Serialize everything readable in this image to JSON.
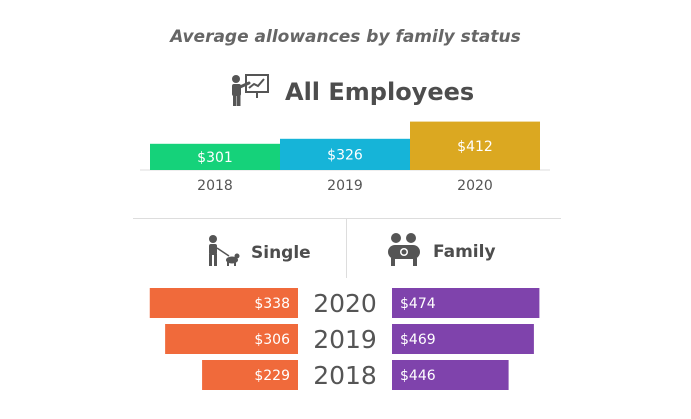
{
  "title": "Average allowances by family status",
  "icons": {
    "all": "presenter-chart-icon",
    "single": "person-walking-dog-icon",
    "family": "family-icon"
  },
  "colors": {
    "all": [
      "#15d27a",
      "#16b4d8",
      "#dba821"
    ],
    "single": "#f06a3b",
    "family": "#7f43ac",
    "text": "#4d4d4d",
    "axis": "#dddddd"
  },
  "chart_data": [
    {
      "type": "bar",
      "title": "All Employees",
      "categories": [
        "2018",
        "2019",
        "2020"
      ],
      "values": [
        301,
        326,
        412
      ],
      "value_labels": [
        "$301",
        "$326",
        "$412"
      ],
      "xlabel": "",
      "ylabel": "",
      "grid": false
    },
    {
      "type": "bar",
      "orientation": "horizontal",
      "categories": [
        "2020",
        "2019",
        "2018"
      ],
      "series": [
        {
          "name": "Single",
          "values": [
            338,
            306,
            229
          ],
          "labels": [
            "$338",
            "$306",
            "$229"
          ]
        },
        {
          "name": "Family",
          "values": [
            474,
            469,
            446
          ],
          "labels": [
            "$474",
            "$469",
            "$446"
          ]
        }
      ],
      "grid": false
    }
  ]
}
